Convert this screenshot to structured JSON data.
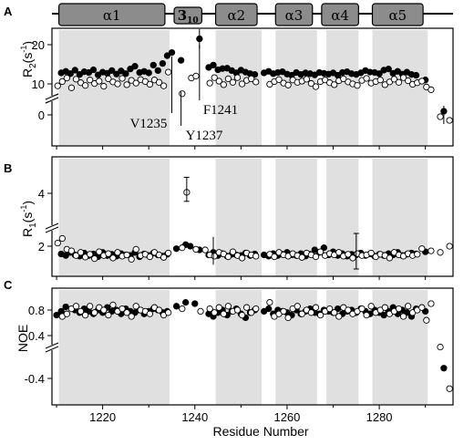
{
  "chart_data": [
    {
      "type": "scatter",
      "panel": "A",
      "ylabel": "R2(s-1)",
      "ylabel_main": "R",
      "ylabel_sub": "2",
      "ylabel_open": "(s",
      "ylabel_sup": "-1",
      "ylabel_close": ")",
      "yticks": [
        "20",
        "10",
        "0"
      ],
      "annotations": [
        "V1235",
        "Y1237",
        "F1241"
      ],
      "series": [
        {
          "marker": "filled",
          "x": [
            1211,
            1212,
            1213,
            1214,
            1215,
            1216,
            1217,
            1218,
            1219,
            1220,
            1221,
            1222,
            1223,
            1224,
            1225,
            1226,
            1227,
            1228,
            1229,
            1230,
            1231,
            1232,
            1233,
            1234,
            1235,
            1237,
            1241,
            1243,
            1244,
            1245,
            1246,
            1247,
            1248,
            1249,
            1250,
            1251,
            1252,
            1253,
            1255,
            1256,
            1257,
            1258,
            1259,
            1260,
            1261,
            1262,
            1263,
            1264,
            1265,
            1266,
            1267,
            1268,
            1269,
            1270,
            1271,
            1272,
            1273,
            1274,
            1275,
            1276,
            1277,
            1278,
            1279,
            1280,
            1281,
            1282,
            1283,
            1284,
            1285,
            1286,
            1287,
            1288,
            1290,
            1294
          ],
          "y": [
            12.8,
            13.2,
            12.6,
            13.5,
            12.4,
            13.1,
            12.9,
            13.6,
            12.3,
            13.0,
            12.7,
            13.4,
            12.5,
            13.3,
            12.6,
            13.8,
            14.5,
            12.9,
            13.2,
            12.8,
            14.8,
            13.4,
            15.2,
            17.2,
            18.0,
            16.0,
            21.5,
            14.2,
            14.8,
            13.6,
            13.9,
            14.0,
            13.4,
            12.8,
            13.5,
            13.0,
            12.6,
            12.4,
            12.8,
            13.2,
            12.6,
            12.9,
            13.1,
            12.5,
            12.2,
            12.9,
            12.4,
            12.8,
            12.6,
            12.3,
            12.9,
            12.7,
            12.5,
            12.8,
            12.2,
            12.9,
            13.1,
            12.6,
            12.4,
            12.8,
            13.4,
            13.0,
            12.9,
            12.6,
            13.5,
            13.8,
            12.7,
            13.2,
            12.5,
            13.0,
            12.4,
            12.2,
            11.0,
            1.0
          ]
        },
        {
          "marker": "open",
          "x": [
            1210,
            1211,
            1212,
            1213,
            1214,
            1215,
            1216,
            1217,
            1218,
            1219,
            1220,
            1221,
            1222,
            1223,
            1224,
            1225,
            1226,
            1227,
            1228,
            1229,
            1230,
            1231,
            1232,
            1233,
            1234,
            1237,
            1239,
            1240,
            1243,
            1244,
            1245,
            1246,
            1247,
            1248,
            1249,
            1250,
            1251,
            1252,
            1253,
            1256,
            1257,
            1258,
            1259,
            1260,
            1261,
            1262,
            1263,
            1264,
            1265,
            1266,
            1267,
            1268,
            1269,
            1270,
            1271,
            1272,
            1273,
            1274,
            1275,
            1276,
            1277,
            1278,
            1279,
            1280,
            1281,
            1282,
            1283,
            1284,
            1285,
            1286,
            1287,
            1288,
            1289,
            1290,
            1291,
            1293,
            1295
          ],
          "y": [
            9.5,
            10.6,
            11.5,
            9.0,
            11.2,
            10.3,
            9.6,
            11.0,
            10.1,
            10.7,
            9.4,
            11.3,
            10.5,
            10.0,
            11.4,
            9.8,
            10.9,
            10.2,
            11.1,
            10.6,
            9.9,
            11.0,
            10.4,
            9.5,
            13.0,
            7.5,
            11.5,
            12.0,
            10.2,
            11.6,
            10.7,
            9.8,
            11.3,
            10.4,
            11.6,
            10.0,
            10.9,
            11.3,
            10.5,
            9.9,
            10.6,
            11.1,
            10.2,
            9.7,
            11.0,
            10.4,
            10.7,
            11.2,
            10.1,
            9.3,
            10.6,
            11.0,
            10.3,
            9.8,
            10.8,
            11.3,
            10.5,
            10.0,
            9.6,
            10.9,
            11.4,
            10.2,
            10.6,
            11.0,
            9.8,
            10.5,
            11.2,
            10.4,
            11.6,
            10.8,
            9.9,
            10.3,
            10.7,
            9.2,
            8.5,
            -0.5,
            -1.5
          ]
        }
      ]
    },
    {
      "type": "scatter",
      "panel": "B",
      "ylabel": "R1(s-1)",
      "ylabel_main": "R",
      "ylabel_sub": "1",
      "ylabel_open": "(s",
      "ylabel_sup": "-1",
      "ylabel_close": ")",
      "yticks": [
        "4",
        "2"
      ],
      "series": [
        {
          "marker": "filled",
          "x": [
            1211,
            1212,
            1213,
            1214,
            1215,
            1216,
            1217,
            1218,
            1219,
            1220,
            1221,
            1222,
            1223,
            1224,
            1225,
            1226,
            1227,
            1228,
            1229,
            1230,
            1231,
            1232,
            1233,
            1234,
            1236,
            1238,
            1239,
            1241,
            1243,
            1244,
            1245,
            1246,
            1247,
            1248,
            1249,
            1250,
            1251,
            1252,
            1253,
            1255,
            1256,
            1257,
            1258,
            1259,
            1260,
            1261,
            1262,
            1263,
            1264,
            1265,
            1266,
            1267,
            1268,
            1269,
            1270,
            1271,
            1272,
            1273,
            1274,
            1275,
            1276,
            1277,
            1278,
            1279,
            1280,
            1281,
            1282,
            1283,
            1284,
            1285,
            1286,
            1287,
            1288,
            1290
          ],
          "y": [
            1.75,
            1.7,
            1.8,
            1.72,
            1.68,
            1.78,
            1.7,
            1.75,
            1.66,
            1.8,
            1.7,
            1.74,
            1.68,
            1.76,
            1.72,
            1.7,
            1.8,
            1.66,
            1.75,
            1.7,
            1.78,
            1.72,
            1.68,
            1.74,
            1.92,
            2.05,
            2.0,
            1.88,
            1.72,
            1.8,
            1.7,
            1.76,
            1.68,
            1.74,
            1.72,
            1.7,
            1.78,
            1.7,
            1.75,
            1.72,
            1.68,
            1.76,
            1.7,
            1.74,
            1.8,
            1.72,
            1.7,
            1.76,
            1.68,
            1.74,
            1.88,
            1.8,
            1.95,
            1.72,
            1.82,
            1.7,
            1.76,
            1.68,
            1.74,
            1.72,
            1.78,
            1.7,
            1.75,
            1.68,
            1.74,
            1.7,
            1.76,
            1.72,
            1.8,
            1.7,
            1.74,
            1.78,
            1.75,
            1.82
          ]
        },
        {
          "marker": "open",
          "x": [
            1210,
            1211,
            1212,
            1213,
            1214,
            1215,
            1216,
            1217,
            1218,
            1219,
            1220,
            1221,
            1222,
            1223,
            1224,
            1225,
            1226,
            1227,
            1228,
            1229,
            1230,
            1231,
            1232,
            1233,
            1234,
            1237,
            1238,
            1240,
            1242,
            1243,
            1244,
            1245,
            1246,
            1247,
            1248,
            1249,
            1250,
            1251,
            1252,
            1253,
            1256,
            1257,
            1258,
            1259,
            1260,
            1261,
            1262,
            1263,
            1264,
            1265,
            1266,
            1267,
            1268,
            1269,
            1270,
            1271,
            1272,
            1273,
            1274,
            1275,
            1276,
            1277,
            1278,
            1279,
            1280,
            1281,
            1282,
            1283,
            1284,
            1285,
            1286,
            1287,
            1288,
            1289,
            1291,
            1293,
            1295
          ],
          "y": [
            2.1,
            2.25,
            1.9,
            1.85,
            1.7,
            1.8,
            1.65,
            1.74,
            1.6,
            1.82,
            1.7,
            1.76,
            1.62,
            1.8,
            1.68,
            1.72,
            1.58,
            1.9,
            1.7,
            1.74,
            1.66,
            1.8,
            1.72,
            1.64,
            1.78,
            1.95,
            4.05,
            1.9,
            1.88,
            1.72,
            1.68,
            1.8,
            1.75,
            1.66,
            1.82,
            1.7,
            1.62,
            1.78,
            1.72,
            1.68,
            1.74,
            1.66,
            1.8,
            1.72,
            1.68,
            1.76,
            1.7,
            1.64,
            1.78,
            1.72,
            1.66,
            1.82,
            1.7,
            1.76,
            1.72,
            1.8,
            1.68,
            1.74,
            1.62,
            1.76,
            1.7,
            1.72,
            1.78,
            1.66,
            1.74,
            1.7,
            1.62,
            1.8,
            1.72,
            1.68,
            1.76,
            1.7,
            1.74,
            1.92,
            1.85,
            1.8,
            2.0
          ]
        }
      ]
    },
    {
      "type": "scatter",
      "panel": "C",
      "ylabel": "NOE",
      "yticks": [
        "0.8",
        "0.4",
        "-0.4"
      ],
      "xlabel": "Residue Number",
      "xticks": [
        "1220",
        "1240",
        "1260",
        "1280"
      ],
      "series": [
        {
          "marker": "filled",
          "x": [
            1210,
            1211,
            1212,
            1214,
            1215,
            1216,
            1217,
            1218,
            1219,
            1220,
            1221,
            1222,
            1223,
            1224,
            1225,
            1226,
            1227,
            1228,
            1229,
            1230,
            1231,
            1232,
            1233,
            1234,
            1236,
            1238,
            1240,
            1243,
            1244,
            1245,
            1246,
            1247,
            1248,
            1249,
            1250,
            1251,
            1252,
            1253,
            1255,
            1256,
            1257,
            1258,
            1259,
            1260,
            1261,
            1262,
            1263,
            1264,
            1265,
            1266,
            1267,
            1268,
            1269,
            1270,
            1271,
            1272,
            1273,
            1274,
            1275,
            1276,
            1277,
            1278,
            1279,
            1280,
            1281,
            1282,
            1283,
            1284,
            1285,
            1286,
            1287,
            1288,
            1290,
            1294
          ],
          "y": [
            0.72,
            0.78,
            0.85,
            0.8,
            0.76,
            0.82,
            0.78,
            0.74,
            0.8,
            0.76,
            0.84,
            0.78,
            0.8,
            0.74,
            0.82,
            0.78,
            0.76,
            0.8,
            0.74,
            0.78,
            0.82,
            0.8,
            0.76,
            0.78,
            0.86,
            0.92,
            0.9,
            0.74,
            0.7,
            0.76,
            0.8,
            0.72,
            0.78,
            0.82,
            0.74,
            0.68,
            0.76,
            0.8,
            0.78,
            0.82,
            0.74,
            0.8,
            0.78,
            0.76,
            0.72,
            0.8,
            0.74,
            0.78,
            0.82,
            0.76,
            0.74,
            0.8,
            0.78,
            0.76,
            0.82,
            0.74,
            0.78,
            0.8,
            0.76,
            0.82,
            0.78,
            0.74,
            0.8,
            0.76,
            0.72,
            0.78,
            0.84,
            0.74,
            0.8,
            0.76,
            0.7,
            0.82,
            0.78,
            -0.25
          ]
        },
        {
          "marker": "open",
          "x": [
            1211,
            1212,
            1213,
            1214,
            1215,
            1216,
            1217,
            1218,
            1219,
            1220,
            1221,
            1222,
            1223,
            1224,
            1225,
            1226,
            1227,
            1228,
            1229,
            1230,
            1231,
            1232,
            1233,
            1234,
            1237,
            1241,
            1243,
            1244,
            1245,
            1246,
            1247,
            1248,
            1249,
            1250,
            1251,
            1252,
            1253,
            1256,
            1257,
            1258,
            1259,
            1260,
            1261,
            1262,
            1263,
            1264,
            1265,
            1266,
            1267,
            1268,
            1269,
            1270,
            1271,
            1272,
            1273,
            1274,
            1275,
            1276,
            1277,
            1278,
            1279,
            1280,
            1281,
            1282,
            1283,
            1284,
            1285,
            1286,
            1287,
            1288,
            1289,
            1290,
            1291,
            1293,
            1295
          ],
          "y": [
            0.7,
            0.74,
            0.82,
            0.86,
            0.78,
            0.72,
            0.86,
            0.76,
            0.84,
            0.8,
            0.72,
            0.88,
            0.78,
            0.82,
            0.76,
            0.7,
            0.86,
            0.8,
            0.78,
            0.74,
            0.84,
            0.8,
            0.72,
            0.76,
            0.82,
            0.78,
            0.82,
            0.76,
            0.84,
            0.74,
            0.86,
            0.78,
            0.8,
            0.72,
            0.84,
            0.76,
            0.82,
            0.92,
            0.7,
            0.74,
            0.78,
            0.68,
            0.82,
            0.86,
            0.74,
            0.8,
            0.76,
            0.84,
            0.72,
            0.78,
            0.82,
            0.76,
            0.7,
            0.84,
            0.8,
            0.74,
            0.78,
            0.82,
            0.72,
            0.86,
            0.76,
            0.8,
            0.84,
            0.74,
            0.78,
            0.82,
            0.7,
            0.86,
            0.76,
            0.8,
            0.84,
            0.64,
            0.9,
            0.22,
            -0.55
          ]
        }
      ]
    }
  ],
  "helices": [
    {
      "label": "α1",
      "start": 1211,
      "end": 1233
    },
    {
      "label": "3",
      "sub": "10",
      "start": 1236,
      "end": 1241
    },
    {
      "label": "α2",
      "start": 1245,
      "end": 1253
    },
    {
      "label": "α3",
      "start": 1258,
      "end": 1265
    },
    {
      "label": "α4",
      "start": 1268,
      "end": 1275
    },
    {
      "label": "α5",
      "start": 1279,
      "end": 1289
    }
  ],
  "shaded_regions": [
    {
      "start": 1211,
      "end": 1234
    },
    {
      "start": 1245,
      "end": 1254
    },
    {
      "start": 1258,
      "end": 1266
    },
    {
      "start": 1269,
      "end": 1275
    },
    {
      "start": 1279,
      "end": 1290
    }
  ],
  "colors": {
    "shade": "#e0e0e0",
    "helix_fill": "#8c8c8c",
    "marker": "#000000",
    "open_fill": "#ffffff"
  }
}
